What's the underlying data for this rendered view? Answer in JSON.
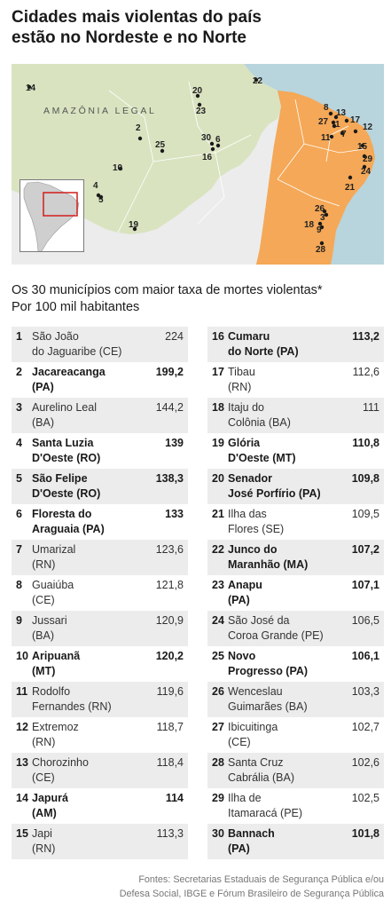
{
  "headline": {
    "line1": "Cidades mais violentas do país",
    "line2": "estão no Nordeste e no Norte"
  },
  "map": {
    "region_label": "AMAZÔNIA LEGAL",
    "markers": [
      "14",
      "22",
      "20",
      "23",
      "8",
      "13",
      "17",
      "27",
      "1",
      "7",
      "12",
      "11",
      "15",
      "2",
      "30",
      "6",
      "16",
      "25",
      "10",
      "29",
      "24",
      "4",
      "5",
      "21",
      "26",
      "3",
      "19",
      "18",
      "9",
      "28"
    ],
    "colors": {
      "amazonia_legal": "#d9e3c0",
      "other_land": "#ececec",
      "northeast": "#f5a857",
      "sea": "#b8d4dd",
      "border": "#ffffff"
    }
  },
  "subtitle": {
    "line1": "Os 30 municípios com maior taxa de mortes violentas*",
    "line2": "Por 100 mil habitantes"
  },
  "ranking_left": [
    {
      "rank": "1",
      "name": "São João\ndo Jaguaribe (CE)",
      "value": "224",
      "bold": false,
      "shaded": true
    },
    {
      "rank": "2",
      "name": "Jacareacanga\n(PA)",
      "value": "199,2",
      "bold": true,
      "shaded": false
    },
    {
      "rank": "3",
      "name": "Aurelino Leal\n(BA)",
      "value": "144,2",
      "bold": false,
      "shaded": true
    },
    {
      "rank": "4",
      "name": "Santa Luzia\nD'Oeste (RO)",
      "value": "139",
      "bold": true,
      "shaded": false
    },
    {
      "rank": "5",
      "name": "São Felipe\nD'Oeste (RO)",
      "value": "138,3",
      "bold": true,
      "shaded": true
    },
    {
      "rank": "6",
      "name": "Floresta do\nAraguaia (PA)",
      "value": "133",
      "bold": true,
      "shaded": false
    },
    {
      "rank": "7",
      "name": "Umarizal\n(RN)",
      "value": "123,6",
      "bold": false,
      "shaded": true
    },
    {
      "rank": "8",
      "name": "Guaiúba\n(CE)",
      "value": "121,8",
      "bold": false,
      "shaded": false
    },
    {
      "rank": "9",
      "name": "Jussari\n(BA)",
      "value": "120,9",
      "bold": false,
      "shaded": true
    },
    {
      "rank": "10",
      "name": "Aripuanã\n(MT)",
      "value": "120,2",
      "bold": true,
      "shaded": false
    },
    {
      "rank": "11",
      "name": "Rodolfo\nFernandes (RN)",
      "value": "119,6",
      "bold": false,
      "shaded": true
    },
    {
      "rank": "12",
      "name": "Extremoz\n(RN)",
      "value": "118,7",
      "bold": false,
      "shaded": false
    },
    {
      "rank": "13",
      "name": "Chorozinho\n(CE)",
      "value": "118,4",
      "bold": false,
      "shaded": true
    },
    {
      "rank": "14",
      "name": "Japurá\n(AM)",
      "value": "114",
      "bold": true,
      "shaded": false
    },
    {
      "rank": "15",
      "name": "Japi\n(RN)",
      "value": "113,3",
      "bold": false,
      "shaded": true
    }
  ],
  "ranking_right": [
    {
      "rank": "16",
      "name": "Cumaru\ndo Norte (PA)",
      "value": "113,2",
      "bold": true,
      "shaded": true
    },
    {
      "rank": "17",
      "name": "Tibau\n(RN)",
      "value": "112,6",
      "bold": false,
      "shaded": false
    },
    {
      "rank": "18",
      "name": "Itaju do\nColônia (BA)",
      "value": "111",
      "bold": false,
      "shaded": true
    },
    {
      "rank": "19",
      "name": "Glória\nD'Oeste (MT)",
      "value": "110,8",
      "bold": true,
      "shaded": false
    },
    {
      "rank": "20",
      "name": "Senador\nJosé Porfírio (PA)",
      "value": "109,8",
      "bold": true,
      "shaded": true
    },
    {
      "rank": "21",
      "name": "Ilha das\nFlores (SE)",
      "value": "109,5",
      "bold": false,
      "shaded": false
    },
    {
      "rank": "22",
      "name": "Junco do\nMaranhão (MA)",
      "value": "107,2",
      "bold": true,
      "shaded": true
    },
    {
      "rank": "23",
      "name": "Anapu\n(PA)",
      "value": "107,1",
      "bold": true,
      "shaded": false
    },
    {
      "rank": "24",
      "name": "São José da\nCoroa Grande (PE)",
      "value": "106,5",
      "bold": false,
      "shaded": true
    },
    {
      "rank": "25",
      "name": "Novo\nProgresso (PA)",
      "value": "106,1",
      "bold": true,
      "shaded": false
    },
    {
      "rank": "26",
      "name": "Wenceslau\nGuimarães (BA)",
      "value": "103,3",
      "bold": false,
      "shaded": true
    },
    {
      "rank": "27",
      "name": "Ibicuitinga\n(CE)",
      "value": "102,7",
      "bold": false,
      "shaded": false
    },
    {
      "rank": "28",
      "name": "Santa Cruz\nCabrália (BA)",
      "value": "102,6",
      "bold": false,
      "shaded": true
    },
    {
      "rank": "29",
      "name": "Ilha de\nItamaracá (PE)",
      "value": "102,5",
      "bold": false,
      "shaded": false
    },
    {
      "rank": "30",
      "name": "Bannach\n(PA)",
      "value": "101,8",
      "bold": true,
      "shaded": true
    }
  ],
  "sources": {
    "line1": "Fontes: Secretarias Estaduais de Segurança Pública e/ou",
    "line2": "Defesa Social, IBGE e Fórum Brasileiro de Segurança Pública"
  }
}
